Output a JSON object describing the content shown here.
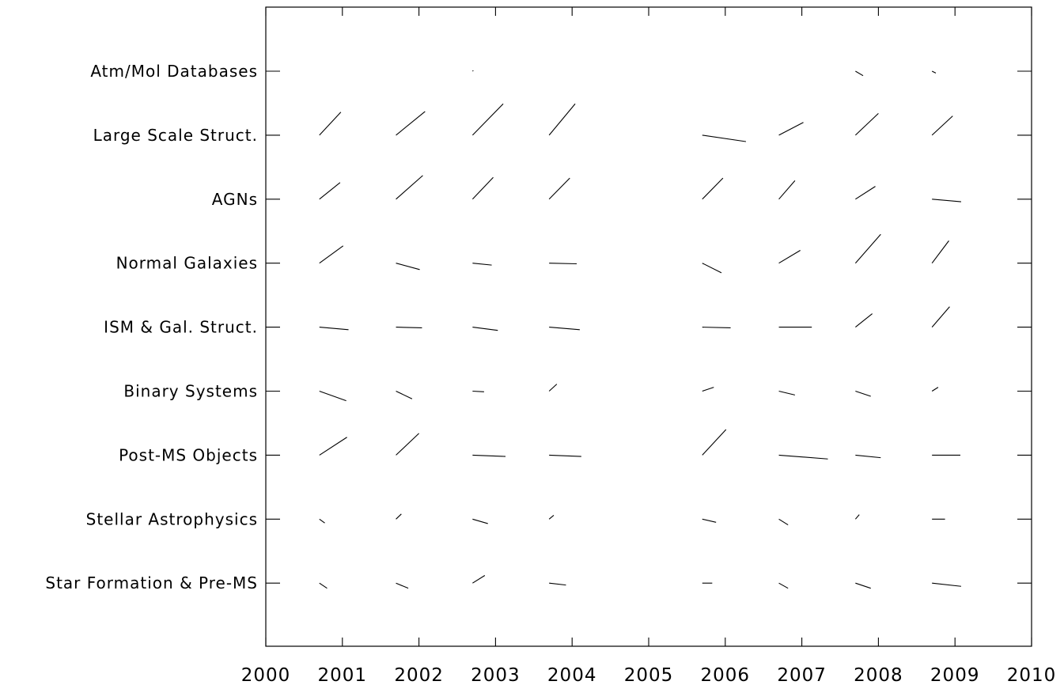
{
  "chart_data": {
    "type": "scatter",
    "title": "",
    "xlabel": "",
    "ylabel": "",
    "xlim": [
      2000,
      2010
    ],
    "x_ticks": [
      2000,
      2001,
      2002,
      2003,
      2004,
      2005,
      2006,
      2007,
      2008,
      2009,
      2010
    ],
    "x_tick_labels": [
      "2000",
      "2001",
      "2002",
      "2003",
      "2004",
      "2005",
      "2006",
      "2007",
      "2008",
      "2009",
      "2010"
    ],
    "grid": false,
    "legend": "none",
    "marker": "line-segment",
    "categories": [
      "Star Formation & Pre-MS",
      "Stellar Astrophysics",
      "Post-MS Objects",
      "Binary Systems",
      "ISM & Gal. Struct.",
      "Normal Galaxies",
      "AGNs",
      "Large Scale Struct.",
      "Atm/Mol Databases"
    ],
    "series": [
      {
        "category": "Star Formation & Pre-MS",
        "points": [
          {
            "year": 2001,
            "dx": 0.1,
            "dy": -0.08
          },
          {
            "year": 2002,
            "dx": 0.16,
            "dy": -0.08
          },
          {
            "year": 2003,
            "dx": 0.16,
            "dy": 0.12
          },
          {
            "year": 2004,
            "dx": 0.22,
            "dy": -0.03
          },
          {
            "year": 2006,
            "dx": 0.13,
            "dy": 0
          },
          {
            "year": 2007,
            "dx": 0.12,
            "dy": -0.08
          },
          {
            "year": 2008,
            "dx": 0.2,
            "dy": -0.08
          },
          {
            "year": 2009,
            "dx": 0.38,
            "dy": -0.05
          }
        ]
      },
      {
        "category": "Stellar Astrophysics",
        "points": [
          {
            "year": 2001,
            "dx": 0.07,
            "dy": -0.06
          },
          {
            "year": 2002,
            "dx": 0.07,
            "dy": 0.08
          },
          {
            "year": 2003,
            "dx": 0.2,
            "dy": -0.07
          },
          {
            "year": 2004,
            "dx": 0.06,
            "dy": 0.06
          },
          {
            "year": 2006,
            "dx": 0.18,
            "dy": -0.05
          },
          {
            "year": 2007,
            "dx": 0.12,
            "dy": -0.09
          },
          {
            "year": 2008,
            "dx": 0.05,
            "dy": 0.07
          },
          {
            "year": 2009,
            "dx": 0.17,
            "dy": 0
          }
        ]
      },
      {
        "category": "Post-MS Objects",
        "points": [
          {
            "year": 2001,
            "dx": 0.36,
            "dy": 0.28
          },
          {
            "year": 2002,
            "dx": 0.3,
            "dy": 0.34
          },
          {
            "year": 2003,
            "dx": 0.43,
            "dy": -0.02
          },
          {
            "year": 2004,
            "dx": 0.42,
            "dy": -0.02
          },
          {
            "year": 2006,
            "dx": 0.31,
            "dy": 0.4
          },
          {
            "year": 2007,
            "dx": 0.64,
            "dy": -0.06
          },
          {
            "year": 2008,
            "dx": 0.33,
            "dy": -0.04
          },
          {
            "year": 2009,
            "dx": 0.37,
            "dy": 0
          }
        ]
      },
      {
        "category": "Binary Systems",
        "points": [
          {
            "year": 2001,
            "dx": 0.35,
            "dy": -0.15
          },
          {
            "year": 2002,
            "dx": 0.21,
            "dy": -0.12
          },
          {
            "year": 2003,
            "dx": 0.15,
            "dy": -0.01
          },
          {
            "year": 2004,
            "dx": 0.1,
            "dy": 0.11
          },
          {
            "year": 2006,
            "dx": 0.15,
            "dy": 0.06
          },
          {
            "year": 2007,
            "dx": 0.21,
            "dy": -0.06
          },
          {
            "year": 2008,
            "dx": 0.2,
            "dy": -0.08
          },
          {
            "year": 2009,
            "dx": 0.08,
            "dy": 0.06
          }
        ]
      },
      {
        "category": "ISM & Gal. Struct.",
        "points": [
          {
            "year": 2001,
            "dx": 0.38,
            "dy": -0.04
          },
          {
            "year": 2002,
            "dx": 0.34,
            "dy": -0.01
          },
          {
            "year": 2003,
            "dx": 0.33,
            "dy": -0.05
          },
          {
            "year": 2004,
            "dx": 0.4,
            "dy": -0.04
          },
          {
            "year": 2006,
            "dx": 0.37,
            "dy": -0.01
          },
          {
            "year": 2007,
            "dx": 0.43,
            "dy": 0
          },
          {
            "year": 2008,
            "dx": 0.22,
            "dy": 0.21
          },
          {
            "year": 2009,
            "dx": 0.23,
            "dy": 0.32
          }
        ]
      },
      {
        "category": "Normal Galaxies",
        "points": [
          {
            "year": 2001,
            "dx": 0.31,
            "dy": 0.27
          },
          {
            "year": 2002,
            "dx": 0.31,
            "dy": -0.1
          },
          {
            "year": 2003,
            "dx": 0.25,
            "dy": -0.03
          },
          {
            "year": 2004,
            "dx": 0.36,
            "dy": -0.01
          },
          {
            "year": 2006,
            "dx": 0.25,
            "dy": -0.15
          },
          {
            "year": 2007,
            "dx": 0.28,
            "dy": 0.2
          },
          {
            "year": 2008,
            "dx": 0.33,
            "dy": 0.45
          },
          {
            "year": 2009,
            "dx": 0.22,
            "dy": 0.35
          }
        ]
      },
      {
        "category": "AGNs",
        "points": [
          {
            "year": 2001,
            "dx": 0.27,
            "dy": 0.26
          },
          {
            "year": 2002,
            "dx": 0.35,
            "dy": 0.37
          },
          {
            "year": 2003,
            "dx": 0.27,
            "dy": 0.34
          },
          {
            "year": 2004,
            "dx": 0.27,
            "dy": 0.33
          },
          {
            "year": 2006,
            "dx": 0.27,
            "dy": 0.33
          },
          {
            "year": 2007,
            "dx": 0.21,
            "dy": 0.29
          },
          {
            "year": 2008,
            "dx": 0.26,
            "dy": 0.2
          },
          {
            "year": 2009,
            "dx": 0.38,
            "dy": -0.04
          }
        ]
      },
      {
        "category": "Large Scale Struct.",
        "points": [
          {
            "year": 2001,
            "dx": 0.28,
            "dy": 0.36
          },
          {
            "year": 2002,
            "dx": 0.38,
            "dy": 0.37
          },
          {
            "year": 2003,
            "dx": 0.4,
            "dy": 0.49
          },
          {
            "year": 2004,
            "dx": 0.34,
            "dy": 0.49
          },
          {
            "year": 2006,
            "dx": 0.57,
            "dy": -0.1
          },
          {
            "year": 2007,
            "dx": 0.32,
            "dy": 0.2
          },
          {
            "year": 2008,
            "dx": 0.3,
            "dy": 0.34
          },
          {
            "year": 2009,
            "dx": 0.27,
            "dy": 0.3
          }
        ]
      },
      {
        "category": "Atm/Mol Databases",
        "points": [
          {
            "year": 2003,
            "dx": 0.01,
            "dy": 0.01
          },
          {
            "year": 2008,
            "dx": 0.1,
            "dy": -0.07
          },
          {
            "year": 2009,
            "dx": 0.05,
            "dy": -0.03
          }
        ]
      }
    ]
  }
}
